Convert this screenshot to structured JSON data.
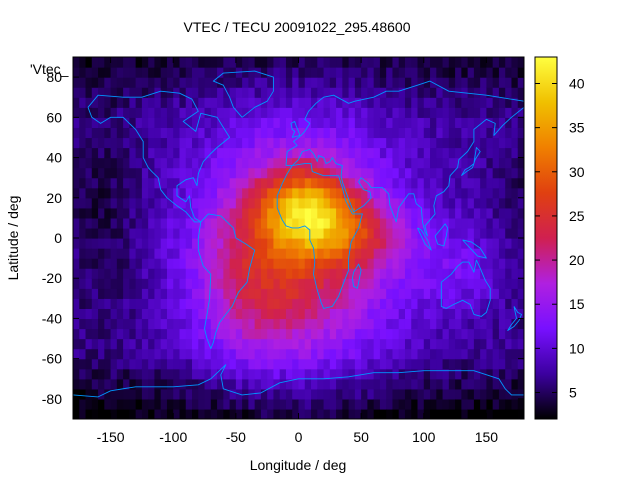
{
  "chart_data": {
    "type": "heatmap",
    "title": "VTEC / TECU 20091022_295.48600",
    "xlabel": "Longitude / deg",
    "ylabel": "Latitude / deg",
    "legend_label": "'Vtec_",
    "xlim": [
      -180,
      180
    ],
    "ylim": [
      -90,
      90
    ],
    "x_ticks": [
      -150,
      -100,
      -50,
      0,
      50,
      100,
      150
    ],
    "y_ticks": [
      -80,
      -60,
      -40,
      -20,
      0,
      20,
      40,
      60,
      80
    ],
    "colorbar": {
      "range": [
        2,
        43
      ],
      "ticks": [
        5,
        10,
        15,
        20,
        25,
        30,
        35,
        40
      ],
      "colormap": [
        "#000000",
        "#3c00a0",
        "#7810ff",
        "#b020e0",
        "#d02050",
        "#e04010",
        "#f08000",
        "#f0c000",
        "#ffff40"
      ]
    },
    "coastline_color": "#0096ff",
    "grid": false,
    "peak": {
      "lon": 5,
      "lat": 15,
      "vtec": 42
    }
  }
}
